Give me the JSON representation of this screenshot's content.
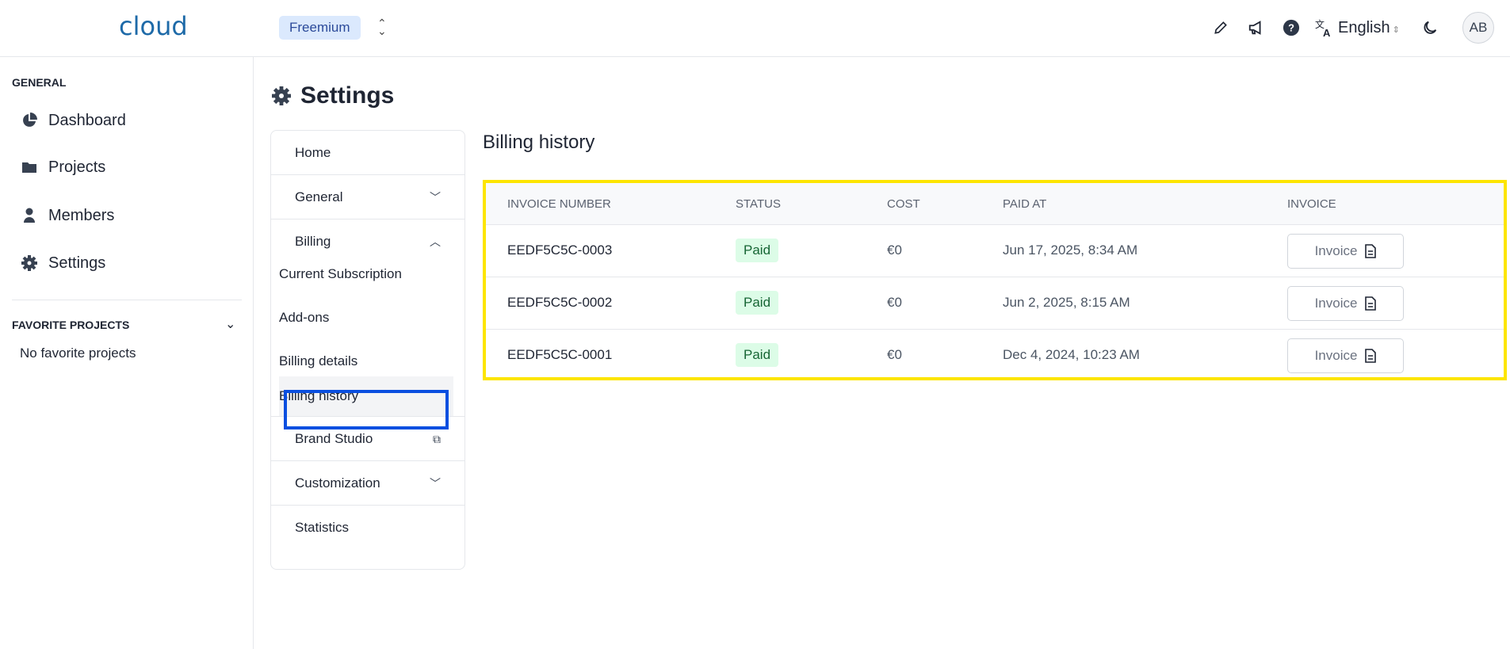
{
  "header": {
    "logo": "cloud",
    "plan": "Freemium",
    "language": "English",
    "avatar": "AB"
  },
  "sidebar": {
    "general_label": "GENERAL",
    "items": [
      {
        "label": "Dashboard",
        "icon": "pie-chart-icon"
      },
      {
        "label": "Projects",
        "icon": "folder-icon"
      },
      {
        "label": "Members",
        "icon": "user-icon"
      },
      {
        "label": "Settings",
        "icon": "gear-icon"
      }
    ],
    "favorites_label": "FAVORITE PROJECTS",
    "no_favorites": "No favorite projects"
  },
  "page": {
    "title": "Settings"
  },
  "settings_nav": {
    "home": "Home",
    "general": "General",
    "billing": "Billing",
    "billing_sub": [
      "Current Subscription",
      "Add-ons",
      "Billing details",
      "Billing history"
    ],
    "brand_studio": "Brand Studio",
    "customization": "Customization",
    "statistics": "Statistics",
    "active": "Billing history"
  },
  "billing": {
    "title": "Billing history",
    "columns": [
      "INVOICE NUMBER",
      "STATUS",
      "COST",
      "PAID AT",
      "INVOICE"
    ],
    "rows": [
      {
        "number": "EEDF5C5C-0003",
        "status": "Paid",
        "cost": "€0",
        "paid_at": "Jun 17, 2025, 8:34 AM",
        "invoice": "Invoice"
      },
      {
        "number": "EEDF5C5C-0002",
        "status": "Paid",
        "cost": "€0",
        "paid_at": "Jun 2, 2025, 8:15 AM",
        "invoice": "Invoice"
      },
      {
        "number": "EEDF5C5C-0001",
        "status": "Paid",
        "cost": "€0",
        "paid_at": "Dec 4, 2024, 10:23 AM",
        "invoice": "Invoice"
      }
    ]
  },
  "colors": {
    "highlight_table": "#fde500",
    "highlight_nav": "#0a4fe0",
    "paid_badge": "#dcfce7"
  }
}
